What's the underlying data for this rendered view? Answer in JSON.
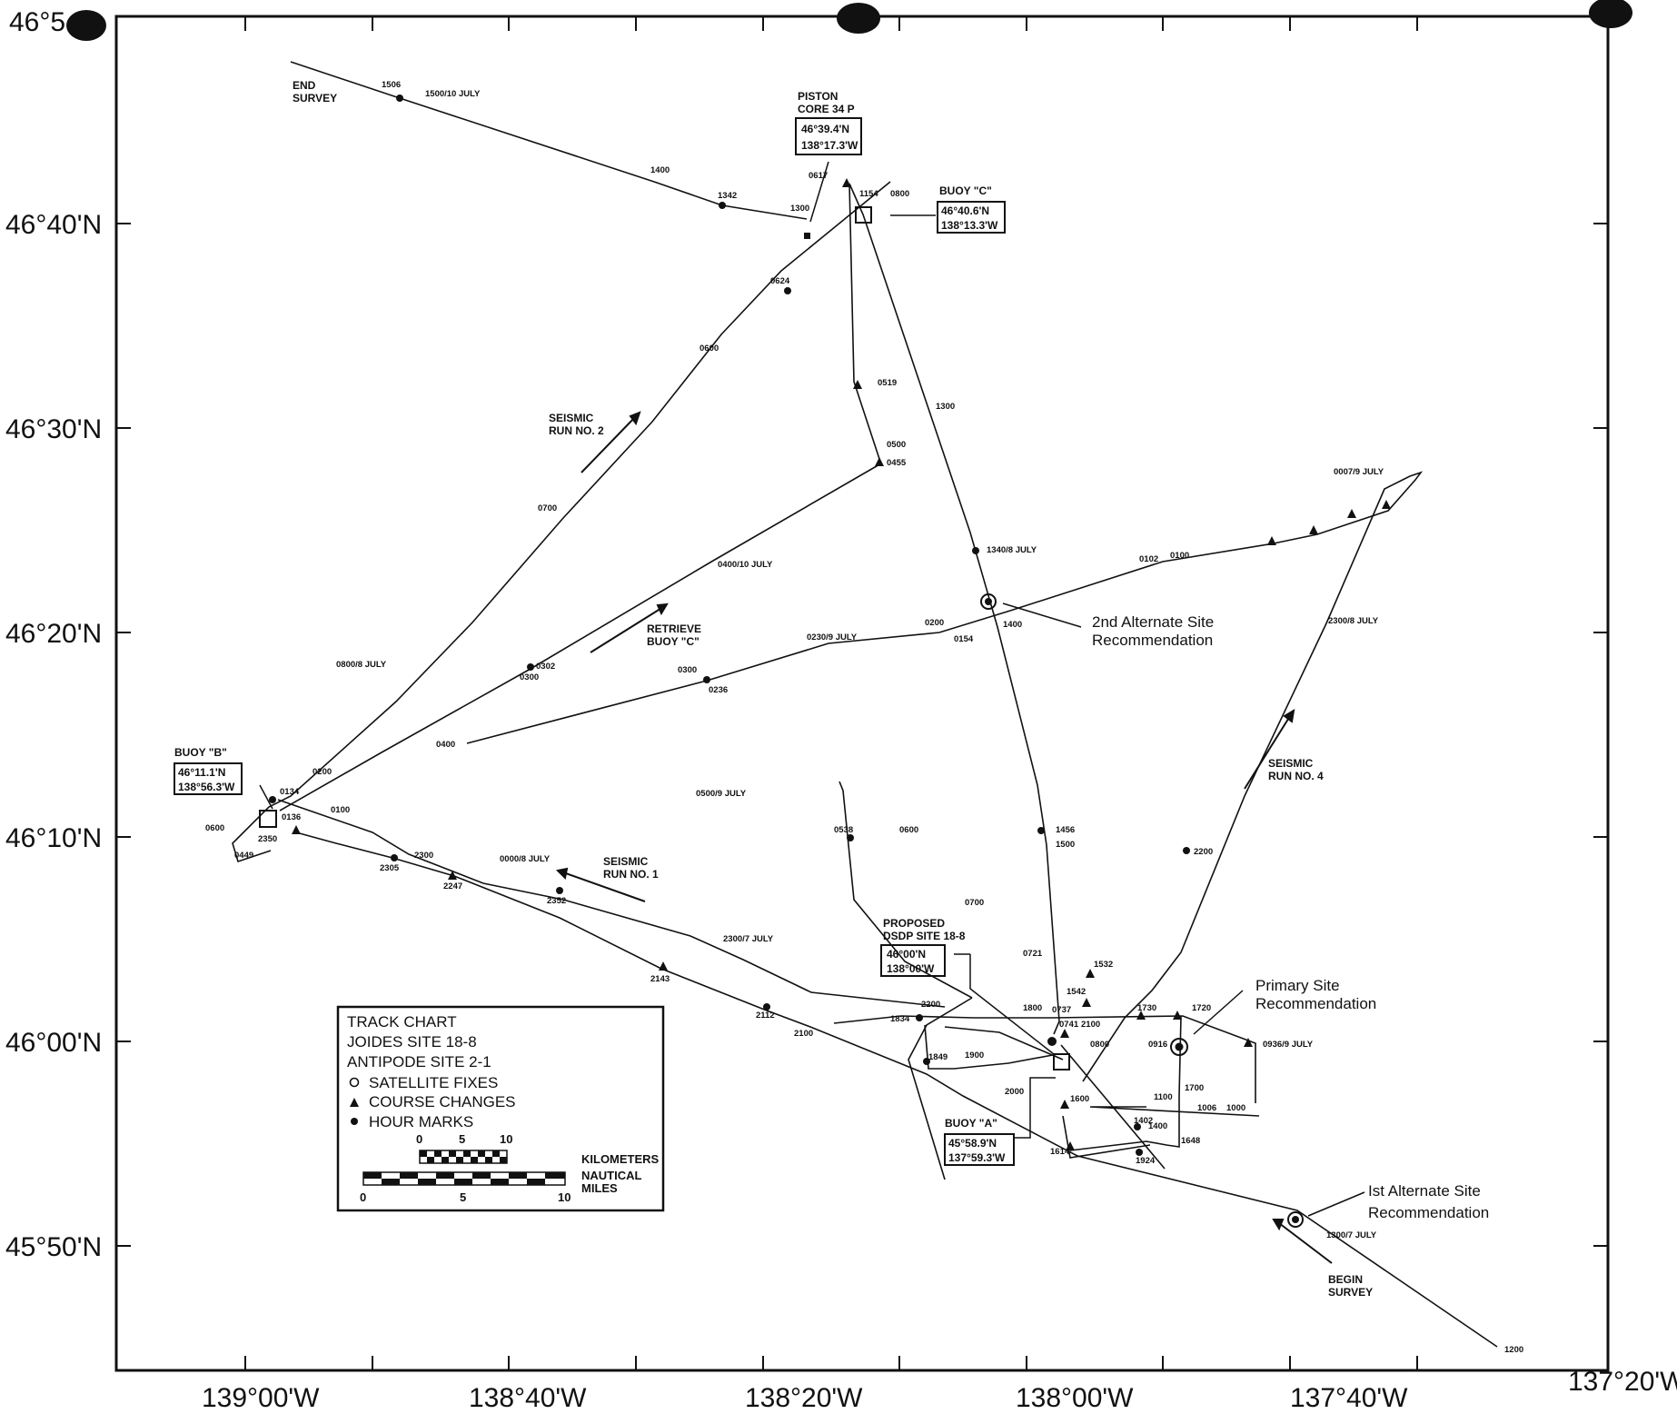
{
  "chart": {
    "lat_labels": [
      {
        "lat": "46°5",
        "text": "46°5"
      },
      {
        "lat": "46°40",
        "text": "46°40'N"
      },
      {
        "lat": "46°30",
        "text": "46°30'N"
      },
      {
        "lat": "46°20",
        "text": "46°20'N"
      },
      {
        "lat": "46°10",
        "text": "46°10'N"
      },
      {
        "lat": "46°00",
        "text": "46°00'N"
      },
      {
        "lat": "45°50",
        "text": "45°50'N"
      }
    ],
    "lon_labels": [
      {
        "text": "139°00'W"
      },
      {
        "text": "138°40'W"
      },
      {
        "text": "138°20'W"
      },
      {
        "text": "138°00'W"
      },
      {
        "text": "137°40'W"
      },
      {
        "text": "137°20'W"
      }
    ],
    "annotations": {
      "end_survey": [
        "END",
        "SURVEY"
      ],
      "begin_survey": [
        "BEGIN",
        "SURVEY"
      ],
      "piston_core": [
        "PISTON",
        "CORE 34 P"
      ],
      "piston_core_coords": [
        "46°39.4'N",
        "138°17.3'W"
      ],
      "buoy_c": "BUOY \"C\"",
      "buoy_c_coords": [
        "46°40.6'N",
        "138°13.3'W"
      ],
      "buoy_b": "BUOY \"B\"",
      "buoy_b_coords": [
        "46°11.1'N",
        "138°56.3'W"
      ],
      "buoy_a": "BUOY \"A\"",
      "buoy_a_coords": [
        "45°58.9'N",
        "137°59.3'W"
      ],
      "proposed_site": [
        "PROPOSED",
        "DSDP SITE 18-8"
      ],
      "proposed_site_coords": [
        "46°00'N",
        "138°00'W"
      ],
      "seismic_run_2": [
        "SEISMIC",
        "RUN NO. 2"
      ],
      "seismic_run_1": [
        "SEISMIC",
        "RUN NO. 1"
      ],
      "seismic_run_4": [
        "SEISMIC",
        "RUN NO. 4"
      ],
      "retrieve_buoy_c": [
        "RETRIEVE",
        "BUOY \"C\""
      ],
      "second_alt_site": [
        "2nd Alternate Site",
        "Recommendation"
      ],
      "primary_site": [
        "Primary Site",
        "Recommendation"
      ],
      "first_alt_site": [
        "Ist Alternate Site",
        "Recommendation"
      ]
    },
    "time_labels": [
      "1506",
      "1500/10 JULY",
      "1400",
      "1342",
      "1300",
      "0617",
      "1154",
      "0800",
      "0624",
      "0600",
      "0519",
      "0500",
      "0455",
      "1300",
      "1340/8 JULY",
      "1400",
      "0154",
      "0200",
      "0230/9 JULY",
      "0300",
      "0236",
      "0400",
      "0400/10 JULY",
      "0302",
      "0300",
      "0700",
      "0800/8 JULY",
      "0200",
      "0134",
      "0136",
      "0100",
      "2350",
      "0449",
      "0600",
      "0500/9 JULY",
      "0538",
      "0600",
      "2300",
      "2305",
      "2247",
      "0000/8 JULY",
      "2352",
      "2300/7 JULY",
      "2143",
      "2112",
      "2100",
      "0700",
      "0721",
      "1456",
      "1500",
      "1532",
      "1542",
      "0102",
      "0100",
      "0007/9 JULY",
      "2300/8 JULY",
      "2200",
      "2200",
      "1834",
      "1849",
      "1900",
      "1800",
      "0737",
      "0741",
      "2100",
      "1730",
      "1720",
      "0800",
      "0916",
      "0936/9 JULY",
      "2000",
      "1600",
      "1700",
      "1100",
      "1006",
      "1000",
      "1402",
      "1400",
      "1614",
      "1648",
      "1924",
      "1300/7 JULY",
      "1200"
    ],
    "legend": {
      "title_lines": [
        "TRACK CHART",
        "JOIDES SITE 18-8",
        "ANTIPODE SITE 2-1"
      ],
      "items": [
        {
          "symbol": "open-circle",
          "label": "SATELLITE FIXES"
        },
        {
          "symbol": "triangle",
          "label": "COURSE CHANGES"
        },
        {
          "symbol": "dot",
          "label": "HOUR MARKS"
        }
      ],
      "km_ticks": [
        "0",
        "5",
        "10"
      ],
      "km_label": "KILOMETERS",
      "nm_ticks": [
        "0",
        "5",
        "10"
      ],
      "nm_label": [
        "NAUTICAL",
        "MILES"
      ]
    }
  }
}
